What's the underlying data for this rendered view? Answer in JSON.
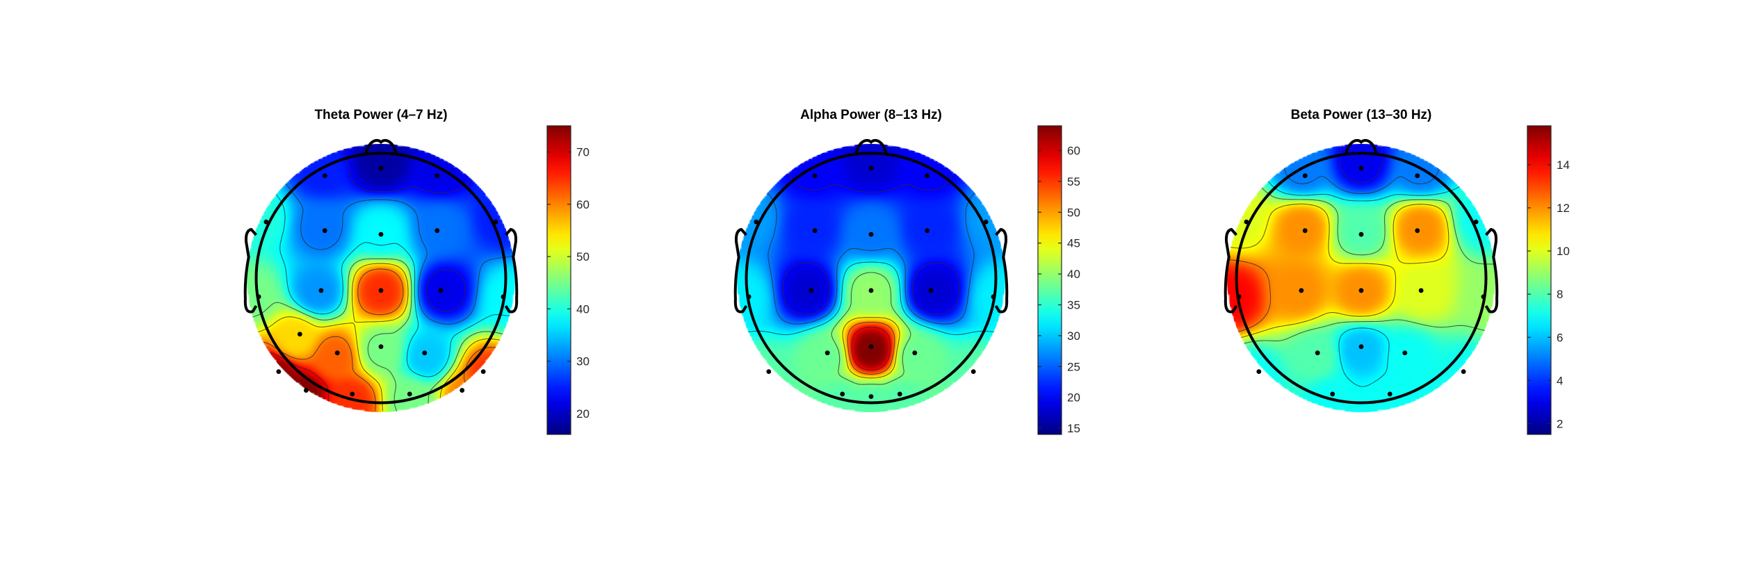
{
  "chart_data": [
    {
      "type": "heatmap",
      "subtype": "topographic-map",
      "title": "Theta Power (4–7 Hz)",
      "colormap": "jet",
      "clim": [
        16,
        75
      ],
      "colorbar_ticks": [
        20,
        30,
        40,
        50,
        60,
        70
      ],
      "electrodes": [
        {
          "x": -0.45,
          "y": 0.82,
          "v": 25
        },
        {
          "x": 0.45,
          "y": 0.82,
          "v": 22
        },
        {
          "x": -0.92,
          "y": 0.45,
          "v": 40
        },
        {
          "x": -0.45,
          "y": 0.38,
          "v": 30
        },
        {
          "x": 0.0,
          "y": 0.35,
          "v": 38
        },
        {
          "x": 0.45,
          "y": 0.38,
          "v": 30
        },
        {
          "x": 0.92,
          "y": 0.45,
          "v": 25
        },
        {
          "x": -0.48,
          "y": -0.1,
          "v": 32
        },
        {
          "x": 0.0,
          "y": -0.1,
          "v": 65
        },
        {
          "x": 0.48,
          "y": -0.1,
          "v": 22
        },
        {
          "x": -0.98,
          "y": -0.15,
          "v": 45
        },
        {
          "x": 0.98,
          "y": -0.15,
          "v": 38
        },
        {
          "x": -0.35,
          "y": -0.6,
          "v": 62
        },
        {
          "x": 0.0,
          "y": -0.55,
          "v": 45
        },
        {
          "x": 0.35,
          "y": -0.6,
          "v": 35
        },
        {
          "x": -0.82,
          "y": -0.75,
          "v": 75
        },
        {
          "x": 0.82,
          "y": -0.75,
          "v": 65
        },
        {
          "x": -0.23,
          "y": -0.93,
          "v": 65
        },
        {
          "x": 0.23,
          "y": -0.93,
          "v": 45
        },
        {
          "x": -0.65,
          "y": -0.45,
          "v": 55
        },
        {
          "x": 0.0,
          "y": 0.88,
          "v": 18
        },
        {
          "x": -0.6,
          "y": -0.9,
          "v": 75
        },
        {
          "x": 0.65,
          "y": -0.9,
          "v": 60
        }
      ]
    },
    {
      "type": "heatmap",
      "subtype": "topographic-map",
      "title": "Alpha Power (8–13 Hz)",
      "colormap": "jet",
      "clim": [
        14,
        64
      ],
      "colorbar_ticks": [
        15,
        20,
        25,
        30,
        35,
        40,
        45,
        50,
        55,
        60
      ],
      "electrodes": [
        {
          "x": -0.45,
          "y": 0.82,
          "v": 20
        },
        {
          "x": 0.45,
          "y": 0.82,
          "v": 20
        },
        {
          "x": -0.92,
          "y": 0.45,
          "v": 28
        },
        {
          "x": -0.45,
          "y": 0.38,
          "v": 22
        },
        {
          "x": 0.0,
          "y": 0.35,
          "v": 26
        },
        {
          "x": 0.45,
          "y": 0.38,
          "v": 22
        },
        {
          "x": 0.92,
          "y": 0.45,
          "v": 28
        },
        {
          "x": -0.48,
          "y": -0.1,
          "v": 18
        },
        {
          "x": 0.0,
          "y": -0.1,
          "v": 40
        },
        {
          "x": 0.48,
          "y": -0.1,
          "v": 18
        },
        {
          "x": -0.98,
          "y": -0.15,
          "v": 32
        },
        {
          "x": 0.98,
          "y": -0.15,
          "v": 32
        },
        {
          "x": -0.35,
          "y": -0.6,
          "v": 38
        },
        {
          "x": 0.0,
          "y": -0.55,
          "v": 64
        },
        {
          "x": 0.35,
          "y": -0.6,
          "v": 38
        },
        {
          "x": -0.82,
          "y": -0.75,
          "v": 37
        },
        {
          "x": 0.82,
          "y": -0.75,
          "v": 37
        },
        {
          "x": -0.23,
          "y": -0.93,
          "v": 37
        },
        {
          "x": 0.23,
          "y": -0.93,
          "v": 37
        },
        {
          "x": 0.0,
          "y": 0.88,
          "v": 18
        },
        {
          "x": 0.0,
          "y": -0.95,
          "v": 37
        }
      ]
    },
    {
      "type": "heatmap",
      "subtype": "topographic-map",
      "title": "Beta Power (13–30 Hz)",
      "colormap": "jet",
      "clim": [
        1.5,
        15.8
      ],
      "colorbar_ticks": [
        2,
        4,
        6,
        8,
        10,
        12,
        14
      ],
      "electrodes": [
        {
          "x": -0.45,
          "y": 0.82,
          "v": 5
        },
        {
          "x": 0.45,
          "y": 0.82,
          "v": 5
        },
        {
          "x": -0.92,
          "y": 0.45,
          "v": 10
        },
        {
          "x": -0.45,
          "y": 0.38,
          "v": 12
        },
        {
          "x": 0.0,
          "y": 0.35,
          "v": 8
        },
        {
          "x": 0.45,
          "y": 0.38,
          "v": 12
        },
        {
          "x": 0.92,
          "y": 0.45,
          "v": 7
        },
        {
          "x": -0.48,
          "y": -0.1,
          "v": 12
        },
        {
          "x": 0.0,
          "y": -0.1,
          "v": 12
        },
        {
          "x": 0.48,
          "y": -0.1,
          "v": 10
        },
        {
          "x": -0.98,
          "y": -0.15,
          "v": 14
        },
        {
          "x": 0.98,
          "y": -0.15,
          "v": 9
        },
        {
          "x": -0.35,
          "y": -0.6,
          "v": 8
        },
        {
          "x": 0.0,
          "y": -0.55,
          "v": 6
        },
        {
          "x": 0.35,
          "y": -0.6,
          "v": 7
        },
        {
          "x": -0.82,
          "y": -0.75,
          "v": 7
        },
        {
          "x": 0.82,
          "y": -0.75,
          "v": 7
        },
        {
          "x": -0.23,
          "y": -0.93,
          "v": 7
        },
        {
          "x": 0.23,
          "y": -0.93,
          "v": 7
        },
        {
          "x": 0.0,
          "y": 0.88,
          "v": 3
        }
      ]
    }
  ]
}
